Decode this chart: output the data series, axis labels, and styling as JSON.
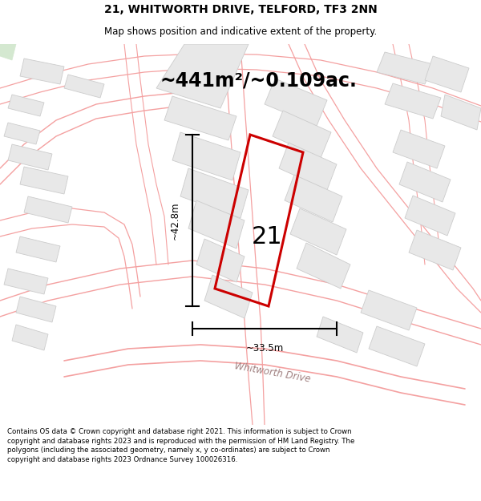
{
  "title_line1": "21, WHITWORTH DRIVE, TELFORD, TF3 2NN",
  "title_line2": "Map shows position and indicative extent of the property.",
  "area_text": "~441m²/~0.109ac.",
  "label_number": "21",
  "dim_vertical": "~42.8m",
  "dim_horizontal": "~33.5m",
  "road_label": "Whitworth Drive",
  "disclaimer": "Contains OS data © Crown copyright and database right 2021. This information is subject to Crown copyright and database rights 2023 and is reproduced with the permission of HM Land Registry. The polygons (including the associated geometry, namely x, y co-ordinates) are subject to Crown copyright and database rights 2023 Ordnance Survey 100026316.",
  "map_bg": "#ffffff",
  "building_fill": "#e8e8e8",
  "building_edge": "#cccccc",
  "road_color": "#f4a0a0",
  "road_fill": "#fce8e8",
  "property_color": "#cc0000",
  "green_color": "#d4e8d0",
  "figsize": [
    6.0,
    6.25
  ],
  "dpi": 100,
  "title_fontsize": 10,
  "subtitle_fontsize": 8.5,
  "area_fontsize": 17,
  "label_fontsize": 22,
  "dim_fontsize": 8.5,
  "road_label_fontsize": 8.5,
  "footer_fontsize": 6.2
}
